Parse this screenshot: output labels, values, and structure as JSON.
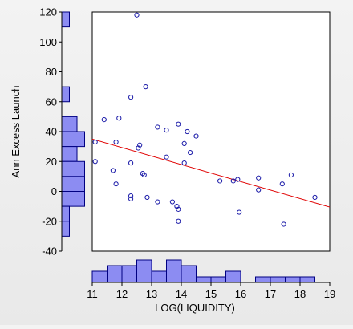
{
  "chart_data": {
    "type": "scatter",
    "title": "",
    "xlabel": "LOG(LIQUIDITY)",
    "ylabel": "Ann Excess Launch",
    "xlim": [
      11,
      19
    ],
    "ylim": [
      -40,
      120
    ],
    "x_ticks": [
      "11",
      "12",
      "13",
      "14",
      "15",
      "16",
      "17",
      "18",
      "19"
    ],
    "y_ticks": [
      "120",
      "100",
      "80",
      "60",
      "40",
      "20",
      "0",
      "-20",
      "-40"
    ],
    "points": [
      [
        11.1,
        33
      ],
      [
        11.1,
        20
      ],
      [
        11.4,
        48
      ],
      [
        11.7,
        14
      ],
      [
        11.8,
        33
      ],
      [
        11.8,
        5
      ],
      [
        11.9,
        49
      ],
      [
        12.3,
        63
      ],
      [
        12.3,
        19
      ],
      [
        12.3,
        -3
      ],
      [
        12.3,
        -5
      ],
      [
        12.5,
        118
      ],
      [
        12.55,
        29
      ],
      [
        12.6,
        31
      ],
      [
        12.7,
        12
      ],
      [
        12.75,
        11
      ],
      [
        12.8,
        70
      ],
      [
        12.85,
        -4
      ],
      [
        13.2,
        43
      ],
      [
        13.2,
        -7
      ],
      [
        13.5,
        23
      ],
      [
        13.5,
        41
      ],
      [
        13.7,
        -7
      ],
      [
        13.85,
        -10
      ],
      [
        13.9,
        45
      ],
      [
        13.9,
        -12
      ],
      [
        13.9,
        -20
      ],
      [
        14.1,
        32
      ],
      [
        14.1,
        19
      ],
      [
        14.2,
        40
      ],
      [
        14.3,
        26
      ],
      [
        14.5,
        37
      ],
      [
        15.3,
        7
      ],
      [
        15.75,
        7
      ],
      [
        15.9,
        8
      ],
      [
        15.95,
        -14
      ],
      [
        16.6,
        1
      ],
      [
        16.6,
        9
      ],
      [
        17.4,
        5
      ],
      [
        17.45,
        -22
      ],
      [
        17.7,
        11
      ],
      [
        18.5,
        -4
      ]
    ],
    "regression": {
      "x": [
        11,
        19
      ],
      "y": [
        35,
        -10.5
      ],
      "color": "#e00000"
    },
    "marker_color": "#1a1aa8",
    "hist_fill": "#8c8cf2",
    "hist_stroke": "#000080",
    "y_hist": [
      {
        "from": 110,
        "to": 120,
        "count": 1
      },
      {
        "from": 60,
        "to": 70,
        "count": 1
      },
      {
        "from": 40,
        "to": 50,
        "count": 2
      },
      {
        "from": 30,
        "to": 40,
        "count": 3
      },
      {
        "from": 20,
        "to": 30,
        "count": 2
      },
      {
        "from": 10,
        "to": 20,
        "count": 3
      },
      {
        "from": 0,
        "to": 10,
        "count": 3
      },
      {
        "from": -10,
        "to": 0,
        "count": 3
      },
      {
        "from": -20,
        "to": -10,
        "count": 1
      },
      {
        "from": -30,
        "to": -20,
        "count": 1
      }
    ],
    "x_hist": [
      {
        "from": 11,
        "to": 11.5,
        "count": 2
      },
      {
        "from": 11.5,
        "to": 12,
        "count": 3
      },
      {
        "from": 12,
        "to": 12.5,
        "count": 3
      },
      {
        "from": 12.5,
        "to": 13,
        "count": 4
      },
      {
        "from": 13,
        "to": 13.5,
        "count": 2
      },
      {
        "from": 13.5,
        "to": 14,
        "count": 4
      },
      {
        "from": 14,
        "to": 14.5,
        "count": 3
      },
      {
        "from": 14.5,
        "to": 15,
        "count": 1
      },
      {
        "from": 15,
        "to": 15.5,
        "count": 1
      },
      {
        "from": 15.5,
        "to": 16,
        "count": 2
      },
      {
        "from": 16.5,
        "to": 17,
        "count": 1
      },
      {
        "from": 17,
        "to": 17.5,
        "count": 1
      },
      {
        "from": 17.5,
        "to": 18,
        "count": 1
      },
      {
        "from": 18,
        "to": 18.5,
        "count": 1
      }
    ]
  }
}
